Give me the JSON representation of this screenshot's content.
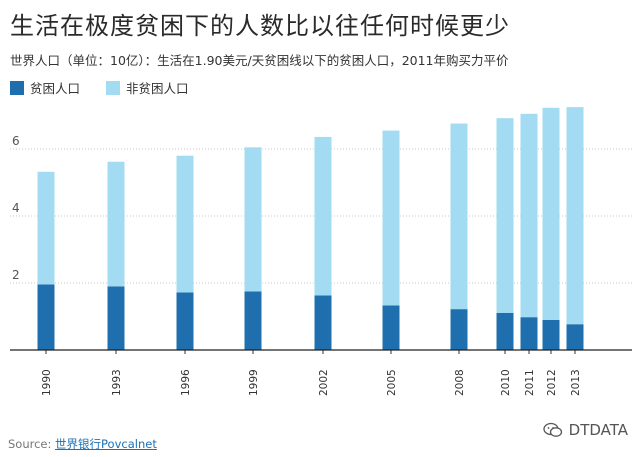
{
  "title": "生活在极度贫困下的人数比以往任何时候更少",
  "subtitle": "世界人口（单位：10亿）：生活在1.90美元/天贫困线以下的贫困人口，2011年购买力平价",
  "legend": [
    {
      "label": "贫困人口",
      "color": "#1f6fae"
    },
    {
      "label": "非贫困人口",
      "color": "#a3dcf2"
    }
  ],
  "source": {
    "prefix": "Source: ",
    "link": "世界银行Povcalnet"
  },
  "watermark": "DTDATA",
  "chart_data": {
    "type": "bar",
    "stacked": true,
    "categories": [
      "1990",
      "1993",
      "1996",
      "1999",
      "2002",
      "2005",
      "2008",
      "2010",
      "2011",
      "2012",
      "2013"
    ],
    "series": [
      {
        "name": "贫困人口",
        "color": "#1f6fae",
        "values": [
          1.96,
          1.9,
          1.72,
          1.75,
          1.63,
          1.33,
          1.22,
          1.11,
          0.98,
          0.9,
          0.77
        ]
      },
      {
        "name": "非贫困人口",
        "color": "#a3dcf2",
        "values": [
          3.36,
          3.72,
          4.08,
          4.3,
          4.73,
          5.22,
          5.54,
          5.81,
          6.07,
          6.33,
          6.48
        ]
      }
    ],
    "ylim": [
      0,
      8
    ],
    "yticks": [
      2,
      4,
      6
    ],
    "xlabel": "",
    "ylabel": "",
    "grid": true
  }
}
